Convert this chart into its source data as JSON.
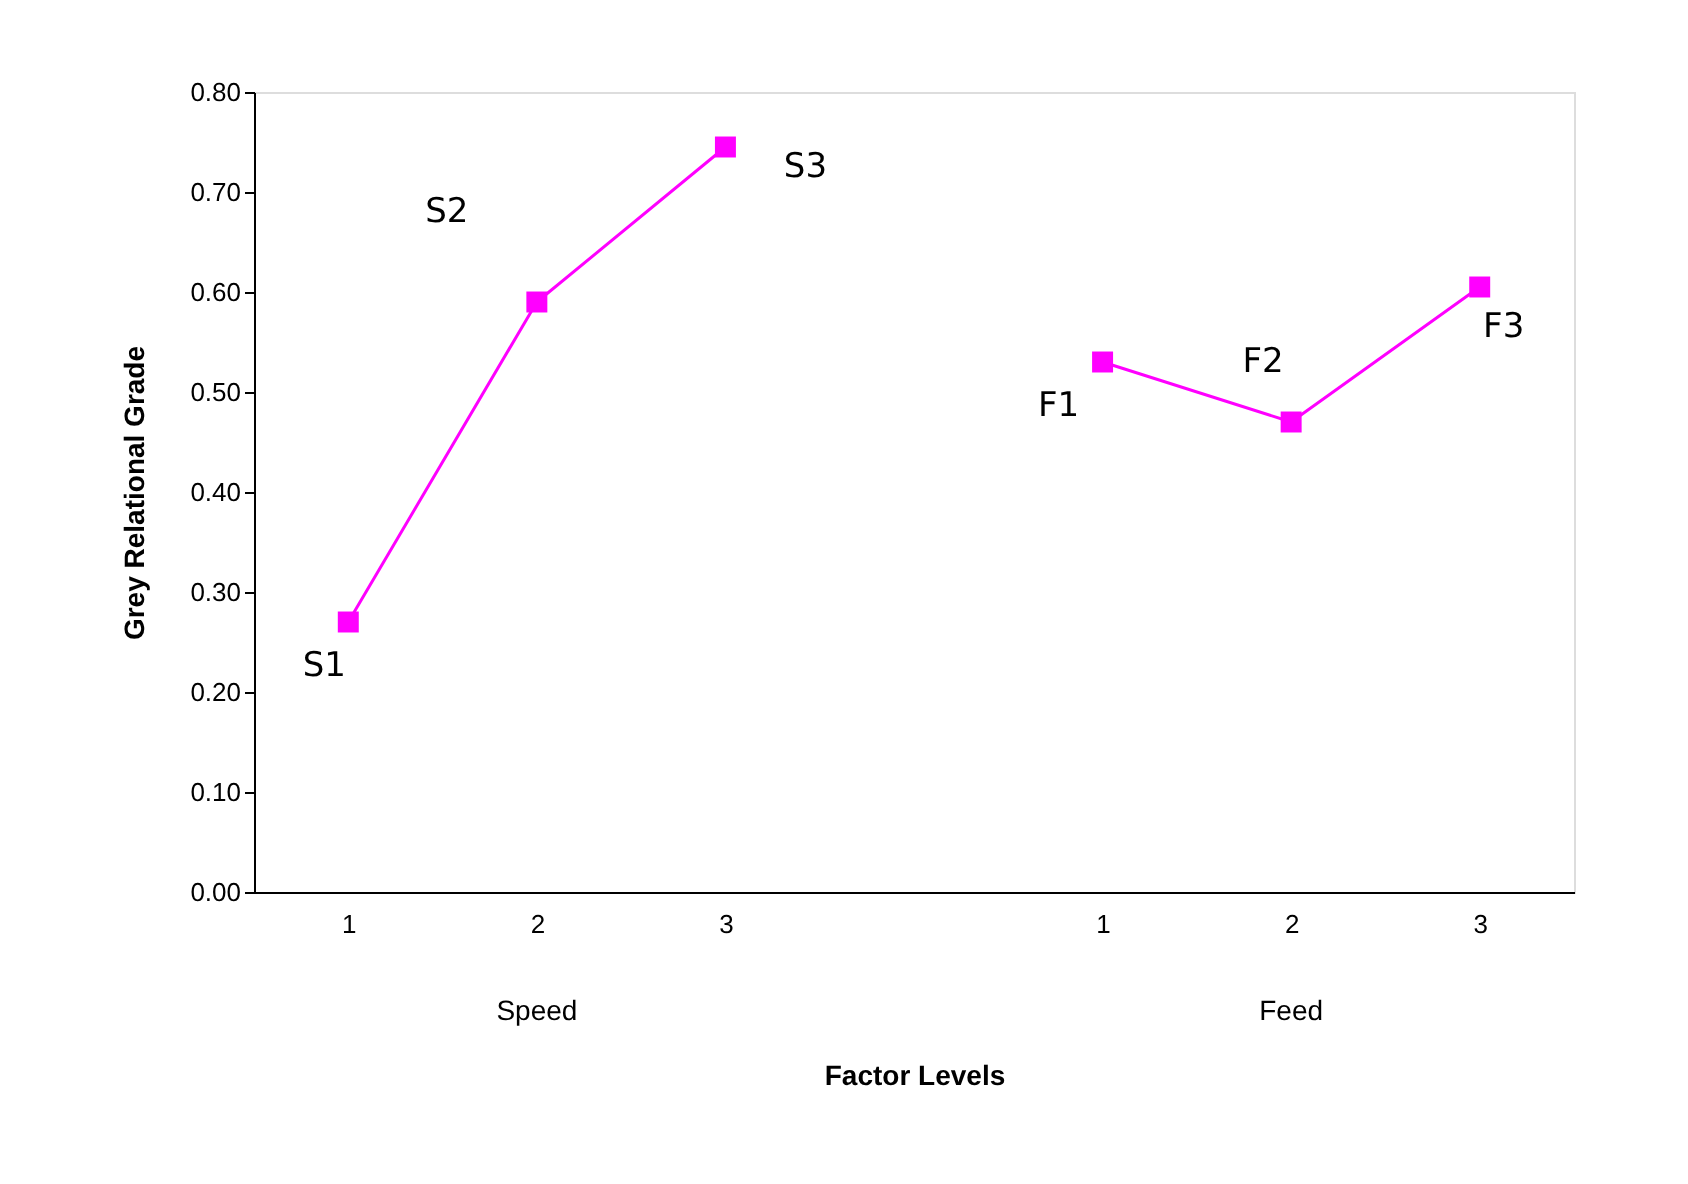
{
  "chart_data": {
    "type": "line",
    "xlabel": "Factor Levels",
    "ylabel": "Grey Relational Grade",
    "categories": [
      "1",
      "2",
      "3",
      null,
      "1",
      "2",
      "3"
    ],
    "series": [
      {
        "color": "#ff00ff",
        "values": [
          0.27,
          0.59,
          0.745,
          null,
          null,
          null,
          null
        ],
        "value_labels": [
          "S1",
          "S2",
          "S3",
          null,
          null,
          null,
          null
        ]
      },
      {
        "color": "#ff00ff",
        "values": [
          null,
          null,
          null,
          null,
          0.53,
          0.47,
          0.605
        ],
        "value_labels": [
          null,
          null,
          null,
          null,
          "F1",
          "F2",
          "F3"
        ]
      }
    ],
    "annotations": [
      "Speed",
      "Feed"
    ],
    "ylim": [
      0,
      0.8
    ],
    "yticks": [
      {
        "value": 0,
        "label": "0.00"
      },
      {
        "value": 0.1,
        "label": "0.10"
      },
      {
        "value": 0.2,
        "label": "0.20"
      },
      {
        "value": 0.3,
        "label": "0.30"
      },
      {
        "value": 0.4,
        "label": "0.40"
      },
      {
        "value": 0.5,
        "label": "0.50"
      },
      {
        "value": 0.6,
        "label": "0.60"
      },
      {
        "value": 0.7,
        "label": "0.70"
      },
      {
        "value": 0.8,
        "label": "0.80"
      }
    ],
    "marker": "square",
    "line_style": "solid",
    "grid": false,
    "legend": false
  }
}
